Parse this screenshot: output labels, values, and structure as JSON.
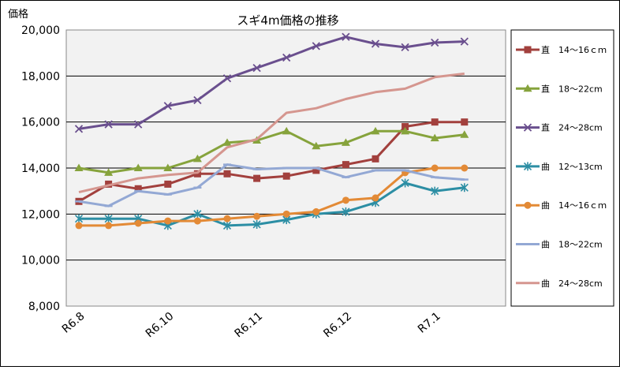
{
  "chart_data": {
    "type": "line",
    "title": "スギ4m価格の推移",
    "ylabel": "価格",
    "xlabel": "",
    "ylim": [
      8000,
      20000
    ],
    "y_step": 2000,
    "y_tick_labels": [
      "8,000",
      "10,000",
      "12,000",
      "14,000",
      "16,000",
      "18,000",
      "20,000"
    ],
    "x_tick_labels": [
      "R6.8",
      "R6.10",
      "R6.11",
      "R6.12",
      "R7.1"
    ],
    "x_tick_positions": [
      0,
      3,
      6,
      9,
      12
    ],
    "n_points": 14,
    "legend_position": "right",
    "series": [
      {
        "name": "直　14～16ｃｍ",
        "color": "#a2403d",
        "marker": "square",
        "values": [
          12550,
          13300,
          13100,
          13300,
          13750,
          13750,
          13550,
          13650,
          13900,
          14150,
          14400,
          15800,
          16000,
          16000
        ]
      },
      {
        "name": "直　18～22cm",
        "color": "#86a33c",
        "marker": "triangle",
        "values": [
          14000,
          13800,
          14000,
          14000,
          14400,
          15100,
          15200,
          15600,
          14950,
          15100,
          15600,
          15600,
          15300,
          15450
        ]
      },
      {
        "name": "直　24～28cm",
        "color": "#6a4f8e",
        "marker": "x",
        "values": [
          15700,
          15900,
          15900,
          16700,
          16950,
          17900,
          18350,
          18800,
          19300,
          19700,
          19400,
          19250,
          19450,
          19500
        ]
      },
      {
        "name": "曲　12～13cm",
        "color": "#2c8ea4",
        "marker": "star",
        "values": [
          11800,
          11800,
          11800,
          11500,
          12000,
          11500,
          11550,
          11750,
          12000,
          12100,
          12500,
          13350,
          13000,
          13150
        ]
      },
      {
        "name": "曲　14～16ｃｍ",
        "color": "#e38a36",
        "marker": "circle",
        "values": [
          11500,
          11500,
          11600,
          11700,
          11700,
          11800,
          11900,
          12000,
          12100,
          12600,
          12700,
          13800,
          14000,
          14000
        ]
      },
      {
        "name": "曲　18～22cm",
        "color": "#93a8d4",
        "marker": "dash",
        "values": [
          12550,
          12350,
          13000,
          12850,
          13150,
          14150,
          13950,
          14000,
          14000,
          13600,
          13900,
          13900,
          13600,
          13500
        ]
      },
      {
        "name": "曲　24～28cm",
        "color": "#d5968f",
        "marker": "none",
        "values": [
          12950,
          13250,
          13550,
          13700,
          13800,
          14900,
          15250,
          16400,
          16600,
          17000,
          17300,
          17450,
          17950,
          18100
        ]
      }
    ]
  }
}
